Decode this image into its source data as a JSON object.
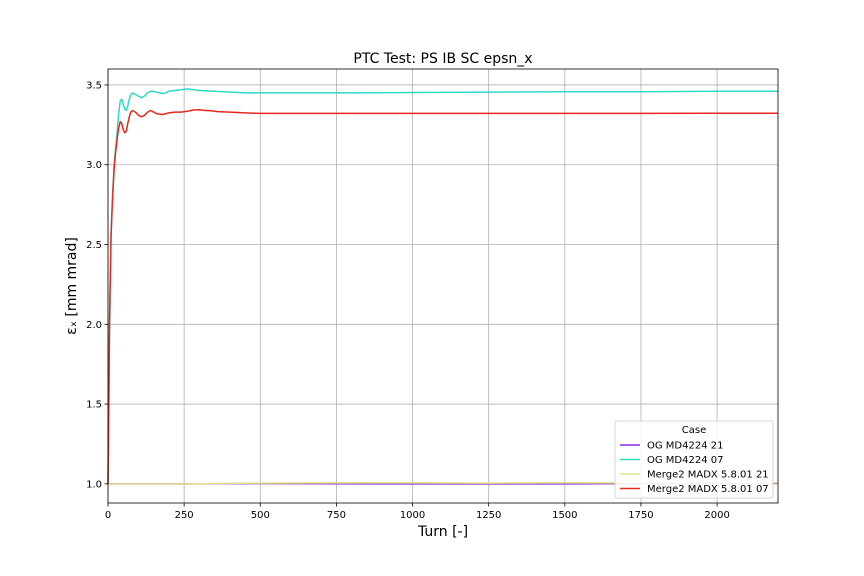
{
  "chart_data": {
    "type": "line",
    "title": "PTC Test: PS IB SC epsn_x",
    "xlabel": "Turn [-]",
    "ylabel": "εₓ [mm mrad]",
    "xlim": [
      0,
      2200
    ],
    "ylim": [
      0.88,
      3.6
    ],
    "xticks": [
      0,
      250,
      500,
      750,
      1000,
      1250,
      1500,
      1750,
      2000
    ],
    "yticks": [
      1.0,
      1.5,
      2.0,
      2.5,
      3.0,
      3.5
    ],
    "xtick_labels": [
      "0",
      "250",
      "500",
      "750",
      "1000",
      "1250",
      "1500",
      "1750",
      "2000"
    ],
    "ytick_labels": [
      "1.0",
      "1.5",
      "2.0",
      "2.5",
      "3.0",
      "3.5"
    ],
    "grid": true,
    "legend_title": "Case",
    "legend_position": "lower-right",
    "series": [
      {
        "name": "OG MD4224 21",
        "color": "#8b2be2",
        "x": [
          0,
          250,
          500,
          750,
          1000,
          1250,
          1500,
          1750,
          2000,
          2200
        ],
        "y": [
          1.0,
          1.0,
          1.002,
          1.001,
          1.0,
          1.0,
          1.0,
          1.002,
          1.003,
          1.003
        ]
      },
      {
        "name": "OG MD4224 07",
        "color": "#2fd9c8",
        "x": [
          0,
          5,
          10,
          15,
          20,
          25,
          30,
          35,
          40,
          45,
          50,
          55,
          60,
          65,
          70,
          75,
          80,
          90,
          100,
          110,
          120,
          130,
          140,
          150,
          160,
          170,
          180,
          190,
          200,
          220,
          240,
          260,
          280,
          300,
          350,
          400,
          450,
          500,
          600,
          800,
          1000,
          1250,
          1500,
          1750,
          2000,
          2200
        ],
        "y": [
          1.0,
          1.9,
          2.55,
          2.8,
          3.0,
          3.1,
          3.2,
          3.32,
          3.4,
          3.41,
          3.38,
          3.35,
          3.34,
          3.37,
          3.41,
          3.44,
          3.45,
          3.44,
          3.43,
          3.42,
          3.43,
          3.45,
          3.46,
          3.46,
          3.455,
          3.45,
          3.445,
          3.45,
          3.46,
          3.465,
          3.47,
          3.475,
          3.47,
          3.465,
          3.46,
          3.455,
          3.45,
          3.45,
          3.45,
          3.45,
          3.453,
          3.455,
          3.457,
          3.458,
          3.46,
          3.46
        ]
      },
      {
        "name": "Merge2 MADX 5.8.01 21",
        "color": "#e3e08a",
        "x": [
          0,
          250,
          500,
          750,
          1000,
          1250,
          1500,
          1750,
          2000,
          2200
        ],
        "y": [
          1.0,
          1.0,
          1.005,
          1.006,
          1.006,
          1.005,
          1.006,
          1.006,
          1.006,
          1.006
        ]
      },
      {
        "name": "Merge2 MADX 5.8.01 07",
        "color": "#e8281e",
        "x": [
          0,
          5,
          10,
          15,
          20,
          25,
          30,
          35,
          40,
          45,
          50,
          55,
          60,
          65,
          70,
          75,
          80,
          90,
          100,
          110,
          120,
          130,
          140,
          150,
          160,
          180,
          200,
          220,
          240,
          260,
          280,
          300,
          320,
          340,
          360,
          400,
          450,
          500,
          600,
          800,
          1000,
          1250,
          1500,
          1750,
          2000,
          2200
        ],
        "y": [
          1.0,
          2.0,
          2.55,
          2.8,
          2.97,
          3.08,
          3.16,
          3.23,
          3.27,
          3.26,
          3.22,
          3.2,
          3.21,
          3.26,
          3.3,
          3.33,
          3.34,
          3.33,
          3.31,
          3.3,
          3.31,
          3.33,
          3.34,
          3.33,
          3.32,
          3.315,
          3.325,
          3.33,
          3.33,
          3.335,
          3.343,
          3.345,
          3.34,
          3.338,
          3.333,
          3.33,
          3.325,
          3.322,
          3.322,
          3.322,
          3.322,
          3.322,
          3.322,
          3.322,
          3.323,
          3.323
        ]
      }
    ]
  }
}
